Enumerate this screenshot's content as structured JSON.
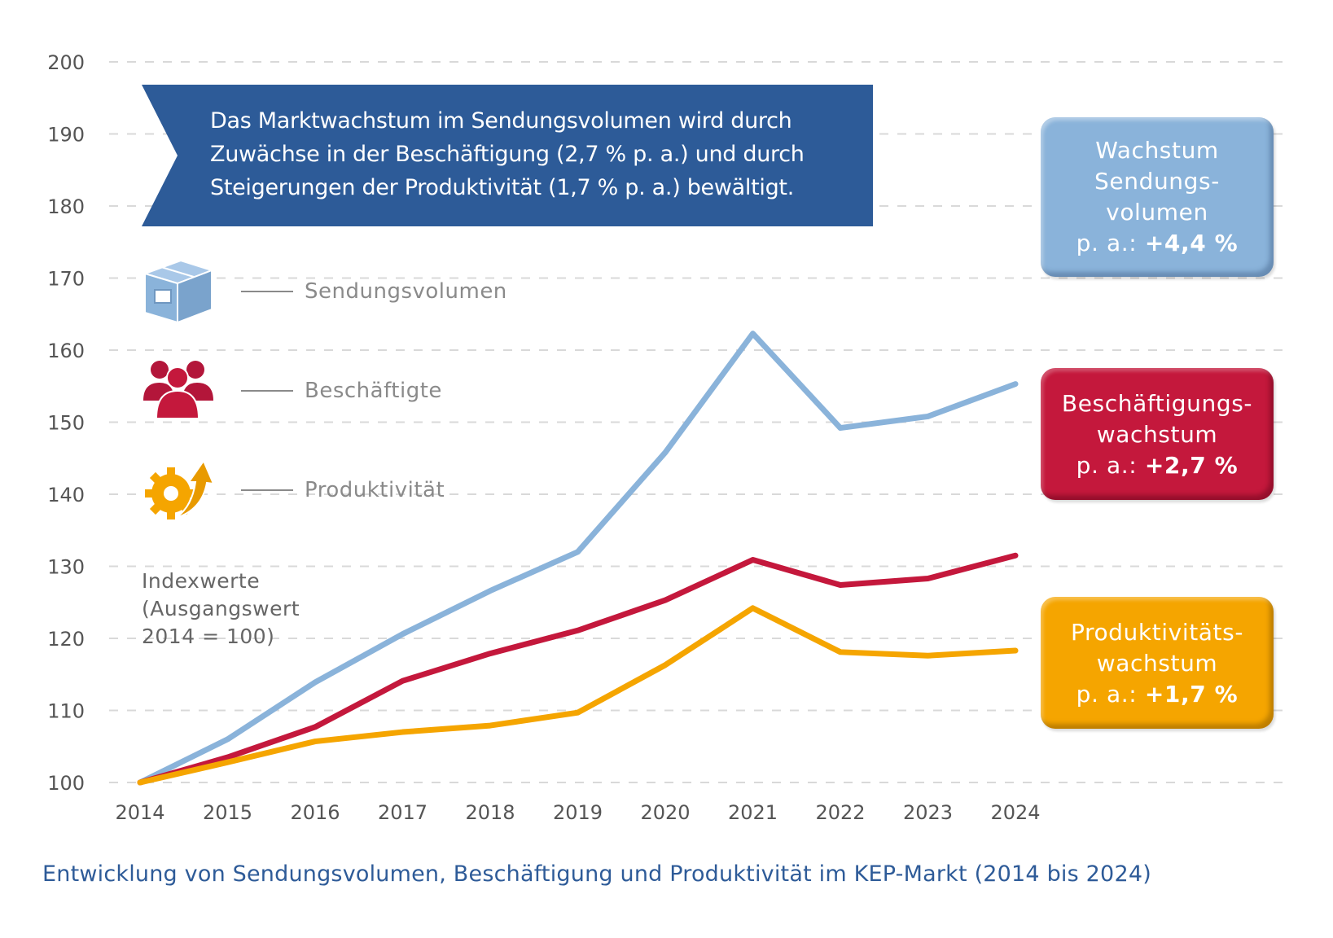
{
  "banner": {
    "lines": [
      "Das Marktwachstum im Sendungsvolumen wird durch",
      "Zuwächse in der Beschäftigung (2,7 % p. a.) und durch",
      "Steigerungen der Produktivität (1,7 %  p. a.) bewältigt."
    ]
  },
  "legend": [
    {
      "label": "Sendungsvolumen",
      "icon": "package-box-icon",
      "color": "#8ab3da"
    },
    {
      "label": "Beschäftigte",
      "icon": "people-group-icon",
      "color": "#c4183c"
    },
    {
      "label": "Produktivität",
      "icon": "gear-arrow-icon",
      "color": "#f5a500"
    }
  ],
  "index_note": [
    "Indexwerte",
    "(Ausgangswert",
    "2014 = 100)"
  ],
  "stat_boxes": [
    {
      "lines": [
        "Wachstum",
        "Sendungs-",
        "volumen"
      ],
      "prefix": "p. a.: ",
      "value": "+4,4 %",
      "color": "#8ab3da"
    },
    {
      "lines": [
        "Beschäftigungs-",
        "wachstum"
      ],
      "prefix": "p. a.: ",
      "value": "+2,7 %",
      "color": "#c4183c"
    },
    {
      "lines": [
        "Produktivitäts-",
        "wachstum"
      ],
      "prefix": "p. a.: ",
      "value": "+1,7 %",
      "color": "#f5a500"
    }
  ],
  "caption": "Entwicklung von Sendungsvolumen, Beschäftigung und Produktivität im KEP-Markt (2014 bis 2024)",
  "chart_data": {
    "type": "line",
    "title": "Entwicklung von Sendungsvolumen, Beschäftigung und Produktivität im KEP-Markt (2014 bis 2024)",
    "xlabel": "",
    "ylabel": "Indexwerte (Ausgangswert 2014 = 100)",
    "x": [
      "2014",
      "2015",
      "2016",
      "2017",
      "2018",
      "2019",
      "2020",
      "2021",
      "2022",
      "2023",
      "2024"
    ],
    "yticks": [
      "100",
      "110",
      "120",
      "130",
      "140",
      "150",
      "160",
      "170",
      "180",
      "190",
      "200"
    ],
    "ylim": [
      100,
      200
    ],
    "grid": true,
    "legend_position": "left",
    "series": [
      {
        "name": "Sendungsvolumen",
        "color": "#8ab3da",
        "values": [
          100,
          106.0,
          113.9,
          120.6,
          126.6,
          132.0,
          145.8,
          162.3,
          149.2,
          150.8,
          155.3
        ]
      },
      {
        "name": "Beschäftigte",
        "color": "#c4183c",
        "values": [
          100,
          103.5,
          107.7,
          114.1,
          117.9,
          121.1,
          125.3,
          130.9,
          127.4,
          128.3,
          131.5
        ]
      },
      {
        "name": "Produktivität",
        "color": "#f5a500",
        "values": [
          100,
          102.8,
          105.7,
          107.0,
          107.9,
          109.7,
          116.3,
          124.2,
          118.1,
          117.6,
          118.3
        ]
      }
    ]
  }
}
